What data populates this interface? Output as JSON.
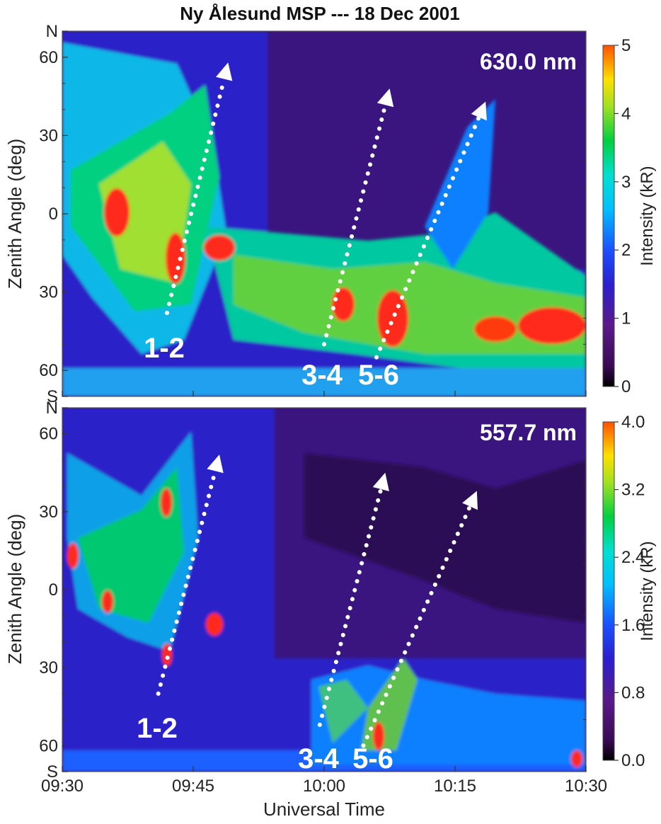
{
  "title": "Ny Ålesund MSP --- 18 Dec 2001",
  "chart_data": [
    {
      "type": "heatmap",
      "wavelength_label": "630.0 nm",
      "ylabel": "Zenith Angle  (deg)",
      "y_tick_labels": [
        "N",
        "60",
        "30",
        "0",
        "30",
        "60",
        "S"
      ],
      "x_tick_labels": [
        "09:30",
        "09:45",
        "10:00",
        "10:15",
        "10:30"
      ],
      "xlim_minutes": [
        0,
        60
      ],
      "ylim_zenith": [
        -70,
        70
      ],
      "colorbar": {
        "title": "Intensity (kR)",
        "range": [
          0,
          5
        ],
        "tick_labels": [
          "0",
          "1",
          "2",
          "3",
          "4",
          "5"
        ]
      },
      "event_labels": [
        "1-2",
        "3-4",
        "5-6"
      ],
      "arrows": [
        {
          "start_min": 12,
          "start_za": -38,
          "end_min": 19,
          "end_za": 58
        },
        {
          "start_min": 30,
          "start_za": -50,
          "end_min": 37.5,
          "end_za": 48
        },
        {
          "start_min": 36,
          "start_za": -55,
          "end_min": 48.5,
          "end_za": 43
        }
      ]
    },
    {
      "type": "heatmap",
      "wavelength_label": "557.7 nm",
      "ylabel": "Zenith Angle  (deg)",
      "y_tick_labels": [
        "N",
        "60",
        "30",
        "0",
        "30",
        "60",
        "S"
      ],
      "x_tick_labels": [
        "09:30",
        "09:45",
        "10:00",
        "10:15",
        "10:30"
      ],
      "xlabel": "Universal Time",
      "xlim_minutes": [
        0,
        60
      ],
      "ylim_zenith": [
        -70,
        70
      ],
      "colorbar": {
        "title": "Intensity (kR)",
        "range": [
          0,
          4.0
        ],
        "tick_labels": [
          "0.0",
          "0.8",
          "1.6",
          "2.4",
          "3.2",
          "4.0"
        ]
      },
      "event_labels": [
        "1-2",
        "3-4",
        "5-6"
      ],
      "arrows": [
        {
          "start_min": 11,
          "start_za": -40,
          "end_min": 18,
          "end_za": 52
        },
        {
          "start_min": 29.5,
          "start_za": -52,
          "end_min": 37,
          "end_za": 45
        },
        {
          "start_min": 34.5,
          "start_za": -60,
          "end_min": 47.5,
          "end_za": 38
        }
      ]
    }
  ]
}
